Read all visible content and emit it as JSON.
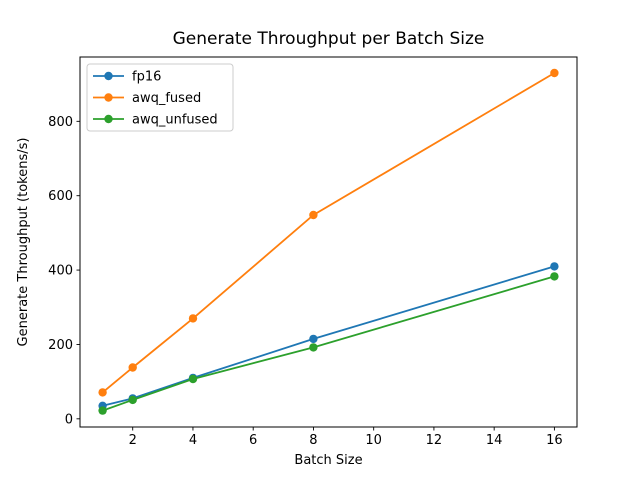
{
  "chart_data": {
    "type": "line",
    "title": "Generate Throughput per Batch Size",
    "xlabel": "Batch Size",
    "ylabel": "Generate Throughput (tokens/s)",
    "x": [
      1,
      2,
      4,
      8,
      16
    ],
    "series": [
      {
        "name": "fp16",
        "color": "#1f77b4",
        "values": [
          35,
          55,
          110,
          215,
          410
        ]
      },
      {
        "name": "awq_fused",
        "color": "#ff7f0e",
        "values": [
          71,
          138,
          270,
          548,
          930
        ]
      },
      {
        "name": "awq_unfused",
        "color": "#2ca02c",
        "values": [
          22,
          51,
          107,
          192,
          383
        ]
      }
    ],
    "xticks": [
      2,
      4,
      6,
      8,
      10,
      12,
      14,
      16
    ],
    "yticks": [
      0,
      200,
      400,
      600,
      800
    ],
    "xlim": [
      0.25,
      16.75
    ],
    "ylim": [
      -22,
      973
    ],
    "grid": false,
    "legend_position": "upper left",
    "marker": "circle",
    "background_color": "#ffffff",
    "spine_color": "#000000",
    "legend_border_color": "#cccccc"
  }
}
